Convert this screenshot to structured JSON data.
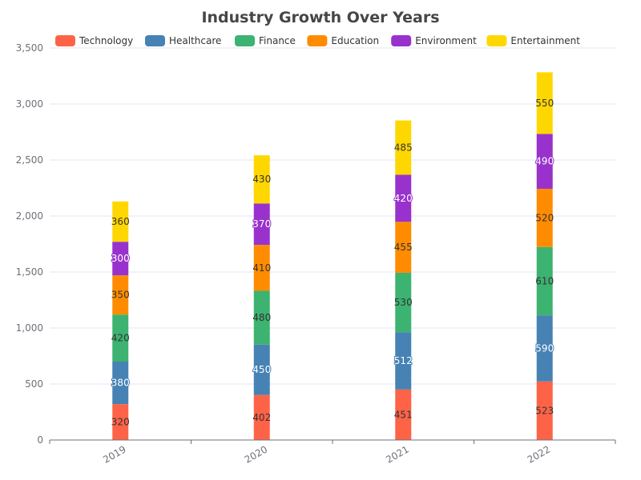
{
  "chart_data": {
    "type": "bar",
    "stacked": true,
    "title": "Industry Growth Over Years",
    "categories": [
      "2019",
      "2020",
      "2021",
      "2022"
    ],
    "series": [
      {
        "name": "Technology",
        "color": "#ff6347",
        "values": [
          320,
          402,
          451,
          523
        ]
      },
      {
        "name": "Healthcare",
        "color": "#4682b4",
        "values": [
          380,
          450,
          512,
          590
        ]
      },
      {
        "name": "Finance",
        "color": "#3cb371",
        "values": [
          420,
          480,
          530,
          610
        ]
      },
      {
        "name": "Education",
        "color": "#ff8c00",
        "values": [
          350,
          410,
          455,
          520
        ]
      },
      {
        "name": "Environment",
        "color": "#9932cc",
        "values": [
          300,
          370,
          420,
          490
        ]
      },
      {
        "name": "Entertainment",
        "color": "#ffd700",
        "values": [
          360,
          430,
          485,
          550
        ]
      }
    ],
    "ylim": [
      0,
      3500
    ],
    "yticks": [
      "0",
      "500",
      "1,000",
      "1,500",
      "2,000",
      "2,500",
      "3,000",
      "3,500"
    ],
    "legend_position": "top-center",
    "grid": true
  }
}
